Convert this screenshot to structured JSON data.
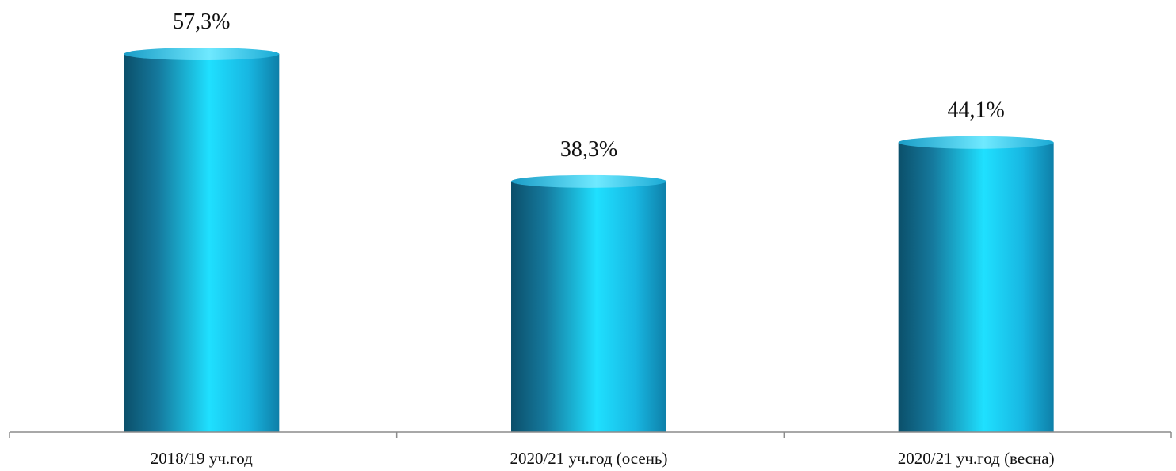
{
  "chart_data": {
    "type": "bar",
    "categories": [
      "2018/19 уч.год",
      "2020/21 уч.год (осень)",
      "2020/21 уч.год (весна)"
    ],
    "values": [
      57.3,
      38.3,
      44.1
    ],
    "value_labels": [
      "57,3%",
      "38,3%",
      "44,1%"
    ],
    "ylim": [
      0,
      60
    ],
    "grid": false,
    "legend": "none",
    "bar_style": "3d-cylinder",
    "colors": {
      "bar_dark": "#0b4f6a",
      "bar_mid": "#1c9fc9",
      "bar_light": "#1fe0ff",
      "bar_top": "#3dd2f5",
      "axis": "#8c8c8c"
    }
  }
}
